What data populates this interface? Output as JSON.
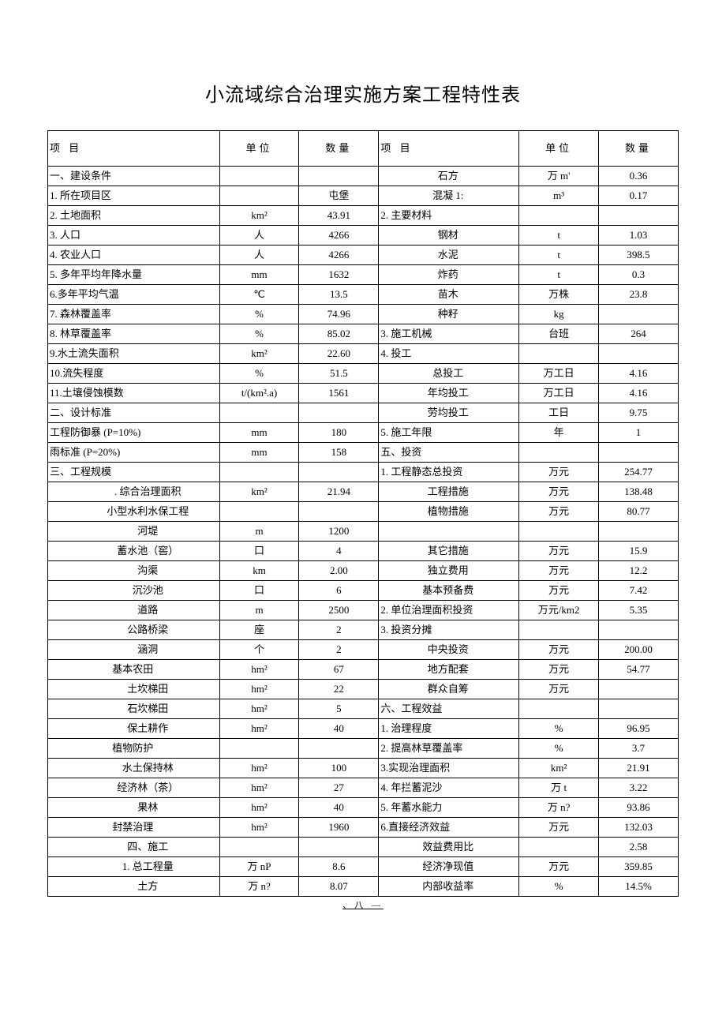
{
  "title": "小流域综合治理实施方案工程特性表",
  "headers": {
    "item": "项   目",
    "unit": "单位",
    "qty": "数量"
  },
  "rows": [
    {
      "l_item": "一、建设条件",
      "l_unit": "",
      "l_qty": "",
      "r_item": "石方",
      "r_item_align": "center",
      "r_unit": "万 m'",
      "r_qty": "0.36"
    },
    {
      "l_item": "1. 所在项目区",
      "l_unit": "",
      "l_qty": "屯堡",
      "r_item": "混凝 1:",
      "r_item_align": "center",
      "r_unit": "m³",
      "r_qty": "0.17"
    },
    {
      "l_item": "2. 土地面积",
      "l_unit": "km²",
      "l_qty": "43.91",
      "r_item": "2. 主要材料",
      "r_unit": "",
      "r_qty": ""
    },
    {
      "l_item": "3. 人口",
      "l_unit": "人",
      "l_qty": "4266",
      "r_item": "钢材",
      "r_item_align": "center",
      "r_unit": "t",
      "r_qty": "1.03"
    },
    {
      "l_item": "4. 农业人口",
      "l_unit": "人",
      "l_qty": "4266",
      "r_item": "水泥",
      "r_item_align": "center",
      "r_unit": "t",
      "r_qty": "398.5"
    },
    {
      "l_item": "5. 多年平均年降水量",
      "l_unit": "mm",
      "l_qty": "1632",
      "r_item": "炸药",
      "r_item_align": "center",
      "r_unit": "t",
      "r_qty": "0.3"
    },
    {
      "l_item": "6.多年平均气温",
      "l_unit": "℃",
      "l_qty": "13.5",
      "r_item": "苗木",
      "r_item_align": "center",
      "r_unit": "万株",
      "r_qty": "23.8"
    },
    {
      "l_item": "7. 森林覆盖率",
      "l_unit": "%",
      "l_qty": "74.96",
      "r_item": "种籽",
      "r_item_align": "center",
      "r_unit": "kg",
      "r_qty": ""
    },
    {
      "l_item": "8. 林草覆盖率",
      "l_unit": "%",
      "l_qty": "85.02",
      "r_item": "3. 施工机械",
      "r_unit": "台班",
      "r_qty": "264"
    },
    {
      "l_item": "9.水土流失面积",
      "l_unit": "km²",
      "l_qty": "22.60",
      "r_item": "4. 投工",
      "r_unit": "",
      "r_qty": ""
    },
    {
      "l_item": "10.流失程度",
      "l_unit": "%",
      "l_qty": "51.5",
      "r_item": "总投工",
      "r_item_align": "center",
      "r_unit": "万工日",
      "r_qty": "4.16"
    },
    {
      "l_item": "11.土壤侵蚀模数",
      "l_unit": "t/(km².a)",
      "l_qty": "1561",
      "r_item": "年均投工",
      "r_item_align": "center",
      "r_unit": "万工日",
      "r_qty": "4.16"
    },
    {
      "l_item": "二、设计标准",
      "l_unit": "",
      "l_qty": "",
      "r_item": "劳均投工",
      "r_item_align": "center",
      "r_unit": "工日",
      "r_qty": "9.75"
    },
    {
      "l_item": "工程防御暴 (P=10%)",
      "l_unit": "mm",
      "l_qty": "180",
      "r_item": "5. 施工年限",
      "r_unit": "年",
      "r_qty": "1"
    },
    {
      "l_item": "  雨标准    (P=20%)",
      "l_unit": "mm",
      "l_qty": "158",
      "r_item": "五、投资",
      "r_unit": "",
      "r_qty": ""
    },
    {
      "l_item": "三、工程规模",
      "l_unit": "",
      "l_qty": "",
      "r_item": "1. 工程静态总投资",
      "r_unit": "万元",
      "r_qty": "254.77"
    },
    {
      "l_item": ". 综合治理面积",
      "l_indent": true,
      "l_unit": "km²",
      "l_qty": "21.94",
      "r_item": "工程措施",
      "r_item_align": "center",
      "r_unit": "万元",
      "r_qty": "138.48"
    },
    {
      "l_item": "小型水利水保工程",
      "l_indent": true,
      "l_unit": "",
      "l_qty": "",
      "r_item": "植物措施",
      "r_item_align": "center",
      "r_unit": "万元",
      "r_qty": "80.77"
    },
    {
      "l_item": "河堤",
      "l_indent": true,
      "l_unit": "m",
      "l_qty": "1200",
      "r_item": "",
      "r_unit": "",
      "r_qty": ""
    },
    {
      "l_item": "蓄水池（窖）",
      "l_indent": true,
      "l_unit": "口",
      "l_qty": "4",
      "r_item": "其它措施",
      "r_item_align": "center",
      "r_unit": "万元",
      "r_qty": "15.9"
    },
    {
      "l_item": "沟渠",
      "l_indent": true,
      "l_unit": "km",
      "l_qty": "2.00",
      "r_item": "独立费用",
      "r_item_align": "center",
      "r_unit": "万元",
      "r_qty": "12.2"
    },
    {
      "l_item": "沉沙池",
      "l_indent": true,
      "l_unit": "口",
      "l_qty": "6",
      "r_item": "基本预备费",
      "r_item_align": "center",
      "r_unit": "万元",
      "r_qty": "7.42"
    },
    {
      "l_item": "道路",
      "l_indent": true,
      "l_unit": "m",
      "l_qty": "2500",
      "r_item": "2. 单位治理面积投资",
      "r_unit": "万元/km2",
      "r_qty": "5.35"
    },
    {
      "l_item": "公路桥梁",
      "l_indent": true,
      "l_unit": "座",
      "l_qty": "2",
      "r_item": "3. 投资分摊",
      "r_unit": "",
      "r_qty": ""
    },
    {
      "l_item": "涵洞",
      "l_indent": true,
      "l_unit": "个",
      "l_qty": "2",
      "r_item": "中央投资",
      "r_item_align": "center",
      "r_unit": "万元",
      "r_qty": "200.00"
    },
    {
      "l_item": "基本农田",
      "l_align": "center",
      "l_unit": "hm²",
      "l_qty": "67",
      "r_item": "地方配套",
      "r_item_align": "center",
      "r_unit": "万元",
      "r_qty": "54.77"
    },
    {
      "l_item": "土坎梯田",
      "l_indent": true,
      "l_unit": "hm²",
      "l_qty": "22",
      "r_item": "群众自筹",
      "r_item_align": "center",
      "r_unit": "万元",
      "r_qty": ""
    },
    {
      "l_item": "石坎梯田",
      "l_indent": true,
      "l_unit": "hm²",
      "l_qty": "5",
      "r_item": "六、工程效益",
      "r_unit": "",
      "r_qty": ""
    },
    {
      "l_item": "保土耕作",
      "l_indent": true,
      "l_unit": "hm²",
      "l_qty": "40",
      "r_item": "1. 治理程度",
      "r_unit": "%",
      "r_qty": "96.95"
    },
    {
      "l_item": "植物防护",
      "l_align": "center",
      "l_unit": "",
      "l_qty": "",
      "r_item": "2. 提高林草覆盖率",
      "r_unit": "%",
      "r_qty": "3.7"
    },
    {
      "l_item": "水土保持林",
      "l_indent": true,
      "l_unit": "hm²",
      "l_qty": "100",
      "r_item": "3.实现治理面积",
      "r_unit": "km²",
      "r_qty": "21.91"
    },
    {
      "l_item": "经济林（茶）",
      "l_indent": true,
      "l_unit": "hm²",
      "l_qty": "27",
      "r_item": "4. 年拦蓄泥沙",
      "r_unit": "万 t",
      "r_qty": "3.22"
    },
    {
      "l_item": "果林",
      "l_indent": true,
      "l_unit": "hm²",
      "l_qty": "40",
      "r_item": "5. 年蓄水能力",
      "r_unit": "万 n?",
      "r_qty": "93.86"
    },
    {
      "l_item": "封禁治理",
      "l_align": "center",
      "l_unit": "hm²",
      "l_qty": "1960",
      "r_item": "6.直接经济效益",
      "r_unit": "万元",
      "r_qty": "132.03"
    },
    {
      "l_item": "四、施工",
      "l_indent": true,
      "l_unit": "",
      "l_qty": "",
      "r_item": "效益费用比",
      "r_item_align": "center",
      "r_unit": "",
      "r_qty": "2.58"
    },
    {
      "l_item": "1. 总工程量",
      "l_indent": true,
      "l_unit": "万 nP",
      "l_qty": "8.6",
      "r_item": "经济净现值",
      "r_item_align": "center",
      "r_unit": "万元",
      "r_qty": "359.85"
    },
    {
      "l_item": "土方",
      "l_indent": true,
      "l_unit": "万 n?",
      "l_qty": "8.07",
      "r_item": "内部收益率",
      "r_item_align": "center",
      "r_unit": "%",
      "r_qty": "14.5%"
    }
  ],
  "footnote": "、八    —"
}
